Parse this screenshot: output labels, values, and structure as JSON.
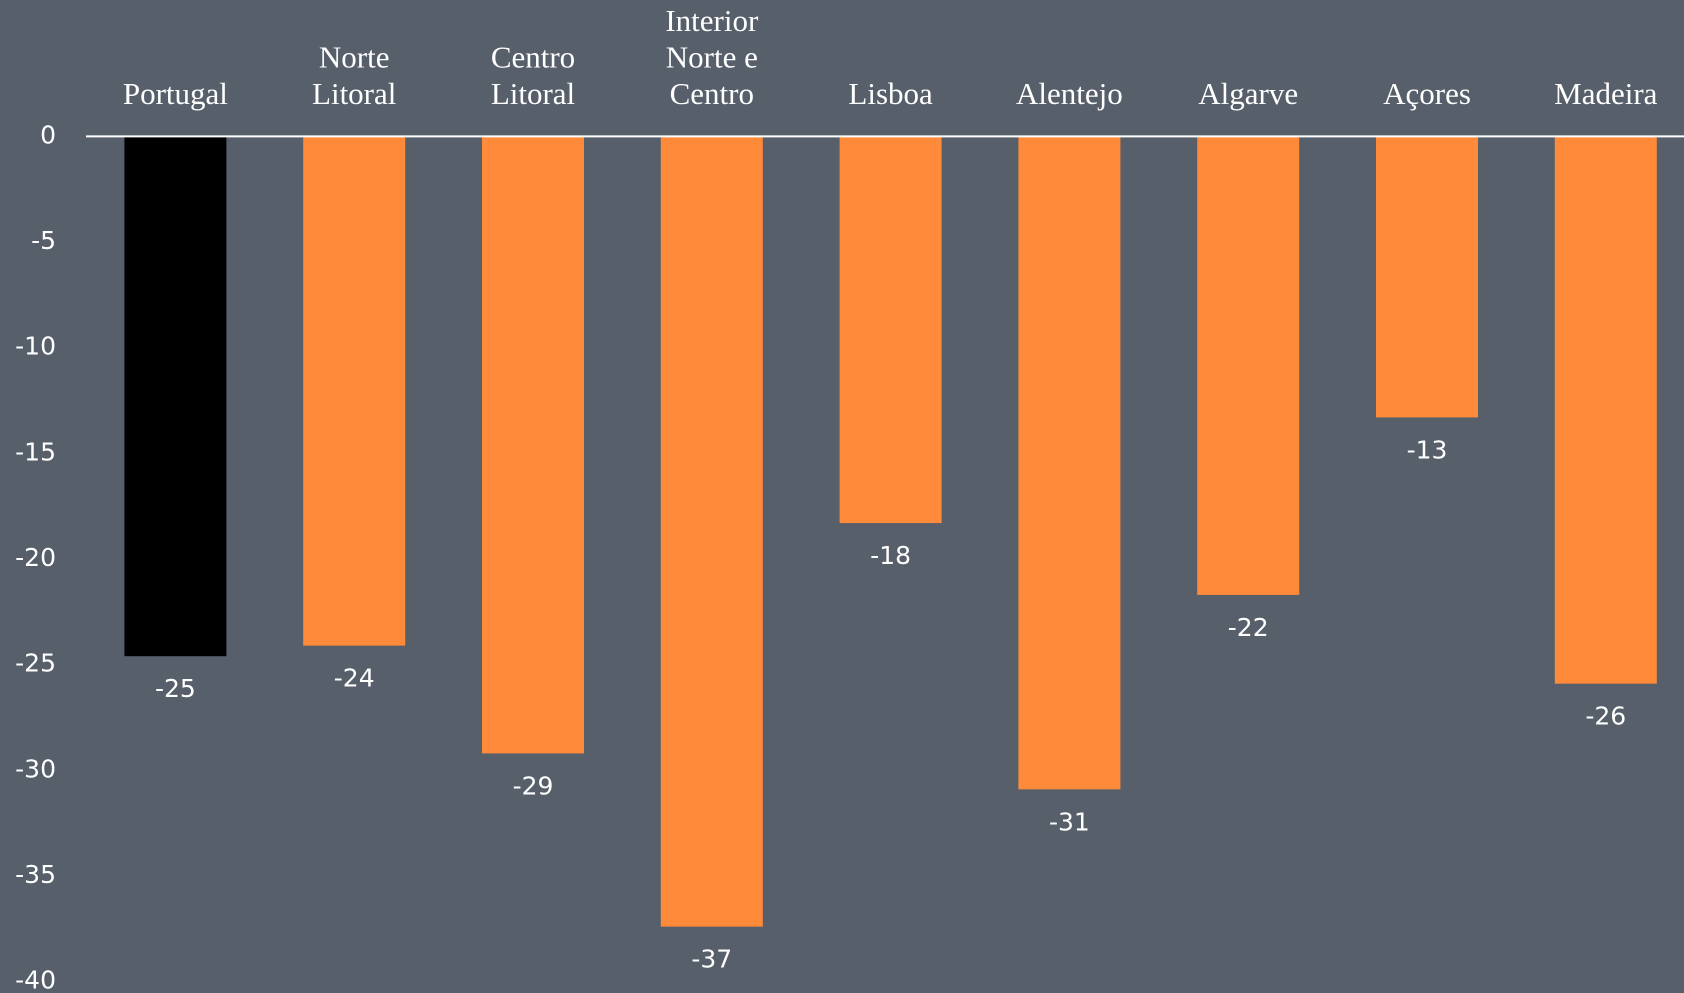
{
  "chart_data": {
    "type": "bar",
    "categories": [
      "Portugal",
      "Norte\nLitoral",
      "Centro\nLitoral",
      "Interior\nNorte e\nCentro",
      "Lisboa",
      "Alentejo",
      "Algarve",
      "Açores",
      "Madeira"
    ],
    "values": [
      -24.6,
      -24.1,
      -29.2,
      -37.4,
      -18.3,
      -30.9,
      -21.7,
      -13.3,
      -25.9
    ],
    "value_labels": [
      "-25",
      "-24",
      "-29",
      "-37",
      "-18",
      "-31",
      "-22",
      "-13",
      "-26"
    ],
    "colors": [
      "#000000",
      "#ff8a3a",
      "#ff8a3a",
      "#ff8a3a",
      "#ff8a3a",
      "#ff8a3a",
      "#ff8a3a",
      "#ff8a3a",
      "#ff8a3a"
    ],
    "ylim": [
      -40,
      0
    ],
    "yticks": [
      0,
      -5,
      -10,
      -15,
      -20,
      -25,
      -30,
      -35,
      -40
    ],
    "grid": false
  }
}
